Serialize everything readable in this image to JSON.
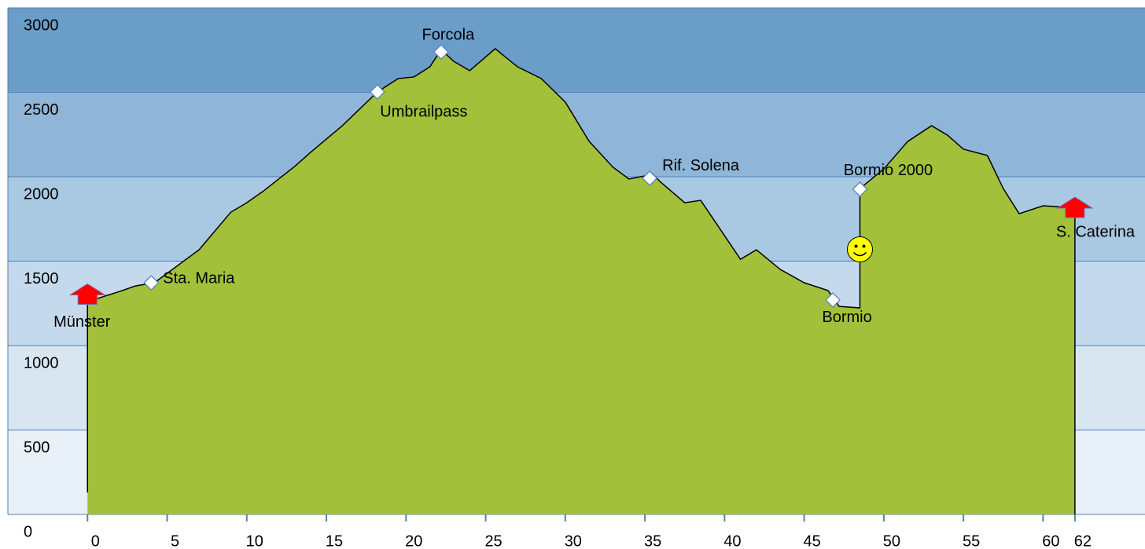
{
  "chart_data": {
    "type": "area",
    "x": [
      0,
      2,
      3,
      4.2,
      5,
      7,
      9,
      10,
      11,
      13,
      14,
      16,
      18.2,
      19.5,
      20.5,
      21.5,
      22.2,
      23,
      24,
      25.6,
      27,
      28.5,
      30,
      31.5,
      33,
      34,
      35.5,
      36,
      37.5,
      38.5,
      40,
      41,
      42,
      43.5,
      45,
      46.5,
      47.2,
      48.5,
      48.5,
      50,
      51.5,
      53,
      54,
      55,
      56.5,
      57.5,
      58.5,
      60,
      61.5,
      62
    ],
    "values": [
      1260,
      1320,
      1353,
      1372,
      1428,
      1567,
      1790,
      1846,
      1912,
      2060,
      2144,
      2302,
      2502,
      2581,
      2591,
      2651,
      2753,
      2683,
      2628,
      2758,
      2651,
      2581,
      2442,
      2209,
      2056,
      1986,
      2014,
      1967,
      1846,
      1860,
      1651,
      1511,
      1567,
      1451,
      1372,
      1326,
      1232,
      1223,
      1930,
      2046,
      2209,
      2302,
      2246,
      2163,
      2126,
      1930,
      1781,
      1828,
      1819,
      1767
    ],
    "color": "#a2c03a",
    "xlim": [
      -5,
      66.4
    ],
    "ylim": [
      0,
      3000
    ],
    "xticks": [
      0,
      5,
      10,
      15,
      20,
      25,
      30,
      35,
      40,
      45,
      50,
      55,
      60,
      62
    ],
    "yticks": [
      0,
      500,
      1000,
      1500,
      2000,
      2500,
      3000
    ],
    "band_colors": [
      "#e8f0f8",
      "#d8e6f2",
      "#c5d9ec",
      "#a9c8e2",
      "#8fb6d8",
      "#6a9ec9"
    ],
    "annotations": [
      {
        "text": "Münster",
        "x": 0,
        "y": 1300,
        "marker": "arrow"
      },
      {
        "text": "Sta. Maria",
        "x": 4,
        "y": 1372,
        "marker": "diamond"
      },
      {
        "text": "Umbrailpass",
        "x": 18.2,
        "y": 2502,
        "marker": "diamond"
      },
      {
        "text": "Forcola",
        "x": 22.2,
        "y": 2739,
        "marker": "diamond"
      },
      {
        "text": "Rif. Solena",
        "x": 35.3,
        "y": 1991,
        "marker": "diamond"
      },
      {
        "text": "Bormio",
        "x": 46.8,
        "y": 1270,
        "marker": "diamond"
      },
      {
        "text": "Bormio 2000",
        "x": 48.5,
        "y": 1926,
        "marker": "diamond"
      },
      {
        "text": "S. Caterina",
        "x": 62,
        "y": 1814,
        "marker": "arrow"
      },
      {
        "x": 48.5,
        "y": 1570,
        "marker": "smiley"
      }
    ]
  }
}
